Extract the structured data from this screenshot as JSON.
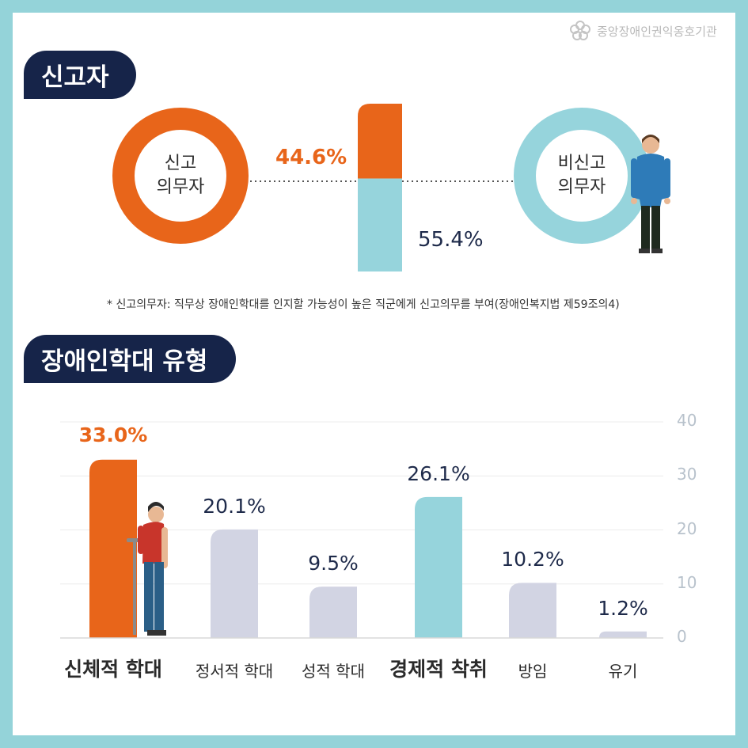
{
  "logo": {
    "text": "중앙장애인권익옹호기관"
  },
  "section1": {
    "title": "신고자",
    "reporter_label_line1": "신고",
    "reporter_label_line2": "의무자",
    "nonreporter_label_line1": "비신고",
    "nonreporter_label_line2": "의무자",
    "reporter_pct": "44.6%",
    "nonreporter_pct": "55.4%",
    "note": "* 신고의무자: 직무상 장애인학대를 인지할 가능성이 높은 직군에게 신고의무를 부여(장애인복지법 제59조의4)"
  },
  "section2": {
    "title": "장애인학대 유형"
  },
  "colors": {
    "orange": "#e8651a",
    "teal": "#96d4dc",
    "gray": "#d2d4e3",
    "navy": "#162449"
  },
  "chart_data": [
    {
      "type": "bar",
      "series": [
        {
          "values": [
            44.6,
            55.4
          ]
        }
      ],
      "categories": [
        "신고의무자",
        "비신고의무자"
      ],
      "value_labels": [
        "44.6%",
        "55.4%"
      ],
      "stacked": true
    },
    {
      "type": "bar",
      "categories": [
        "신체적 학대",
        "정서적 학대",
        "성적 학대",
        "경제적 착취",
        "방임",
        "유기"
      ],
      "values": [
        33.0,
        20.1,
        9.5,
        26.1,
        10.2,
        1.2
      ],
      "value_labels": [
        "33.0%",
        "20.1%",
        "9.5%",
        "26.1%",
        "10.2%",
        "1.2%"
      ],
      "highlight": [
        "orange",
        "gray",
        "gray",
        "teal",
        "gray",
        "gray"
      ],
      "bold_categories": [
        true,
        false,
        false,
        true,
        false,
        false
      ],
      "ylim": [
        0,
        40
      ],
      "yticks": [
        "0",
        "10",
        "20",
        "30",
        "40"
      ],
      "grid": true
    }
  ]
}
